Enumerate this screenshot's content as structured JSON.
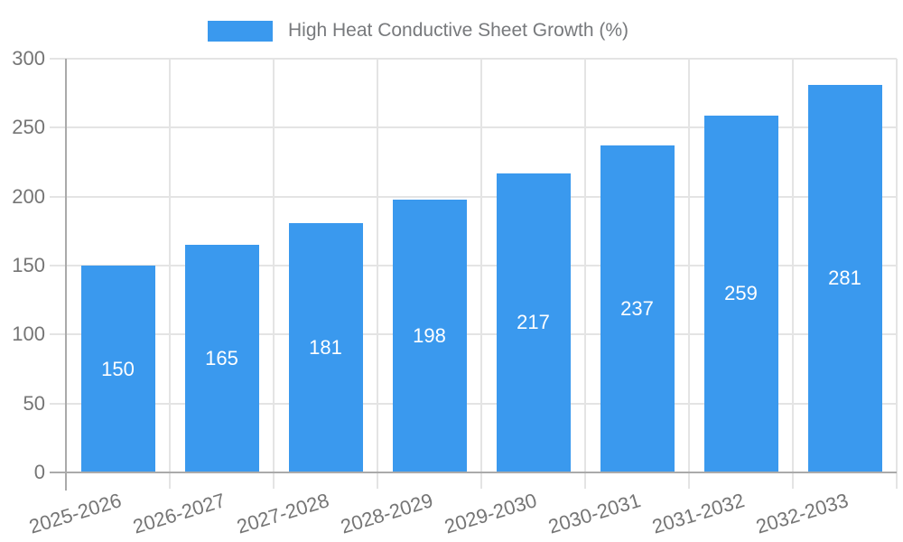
{
  "chart_data": {
    "type": "bar",
    "title": "High Heat Conductive Sheet Growth (%)",
    "categories": [
      "2025-2026",
      "2026-2027",
      "2027-2028",
      "2028-2029",
      "2029-2030",
      "2030-2031",
      "2031-2032",
      "2032-2033"
    ],
    "values": [
      150,
      165,
      181,
      198,
      217,
      237,
      259,
      281
    ],
    "xlabel": "",
    "ylabel": "",
    "ylim": [
      0,
      300
    ],
    "yticks": [
      0,
      50,
      100,
      150,
      200,
      250,
      300
    ],
    "grid": "on",
    "legend_position": "top-center",
    "value_labels": "inside-center",
    "colors": {
      "bar": "#3a99ee",
      "value_label": "#ffffff",
      "grid_line": "#e4e4e4",
      "axis_line": "#aaaaaa",
      "tick_text": "#757575",
      "legend_text": "#77797c",
      "background": "#ffffff"
    }
  }
}
